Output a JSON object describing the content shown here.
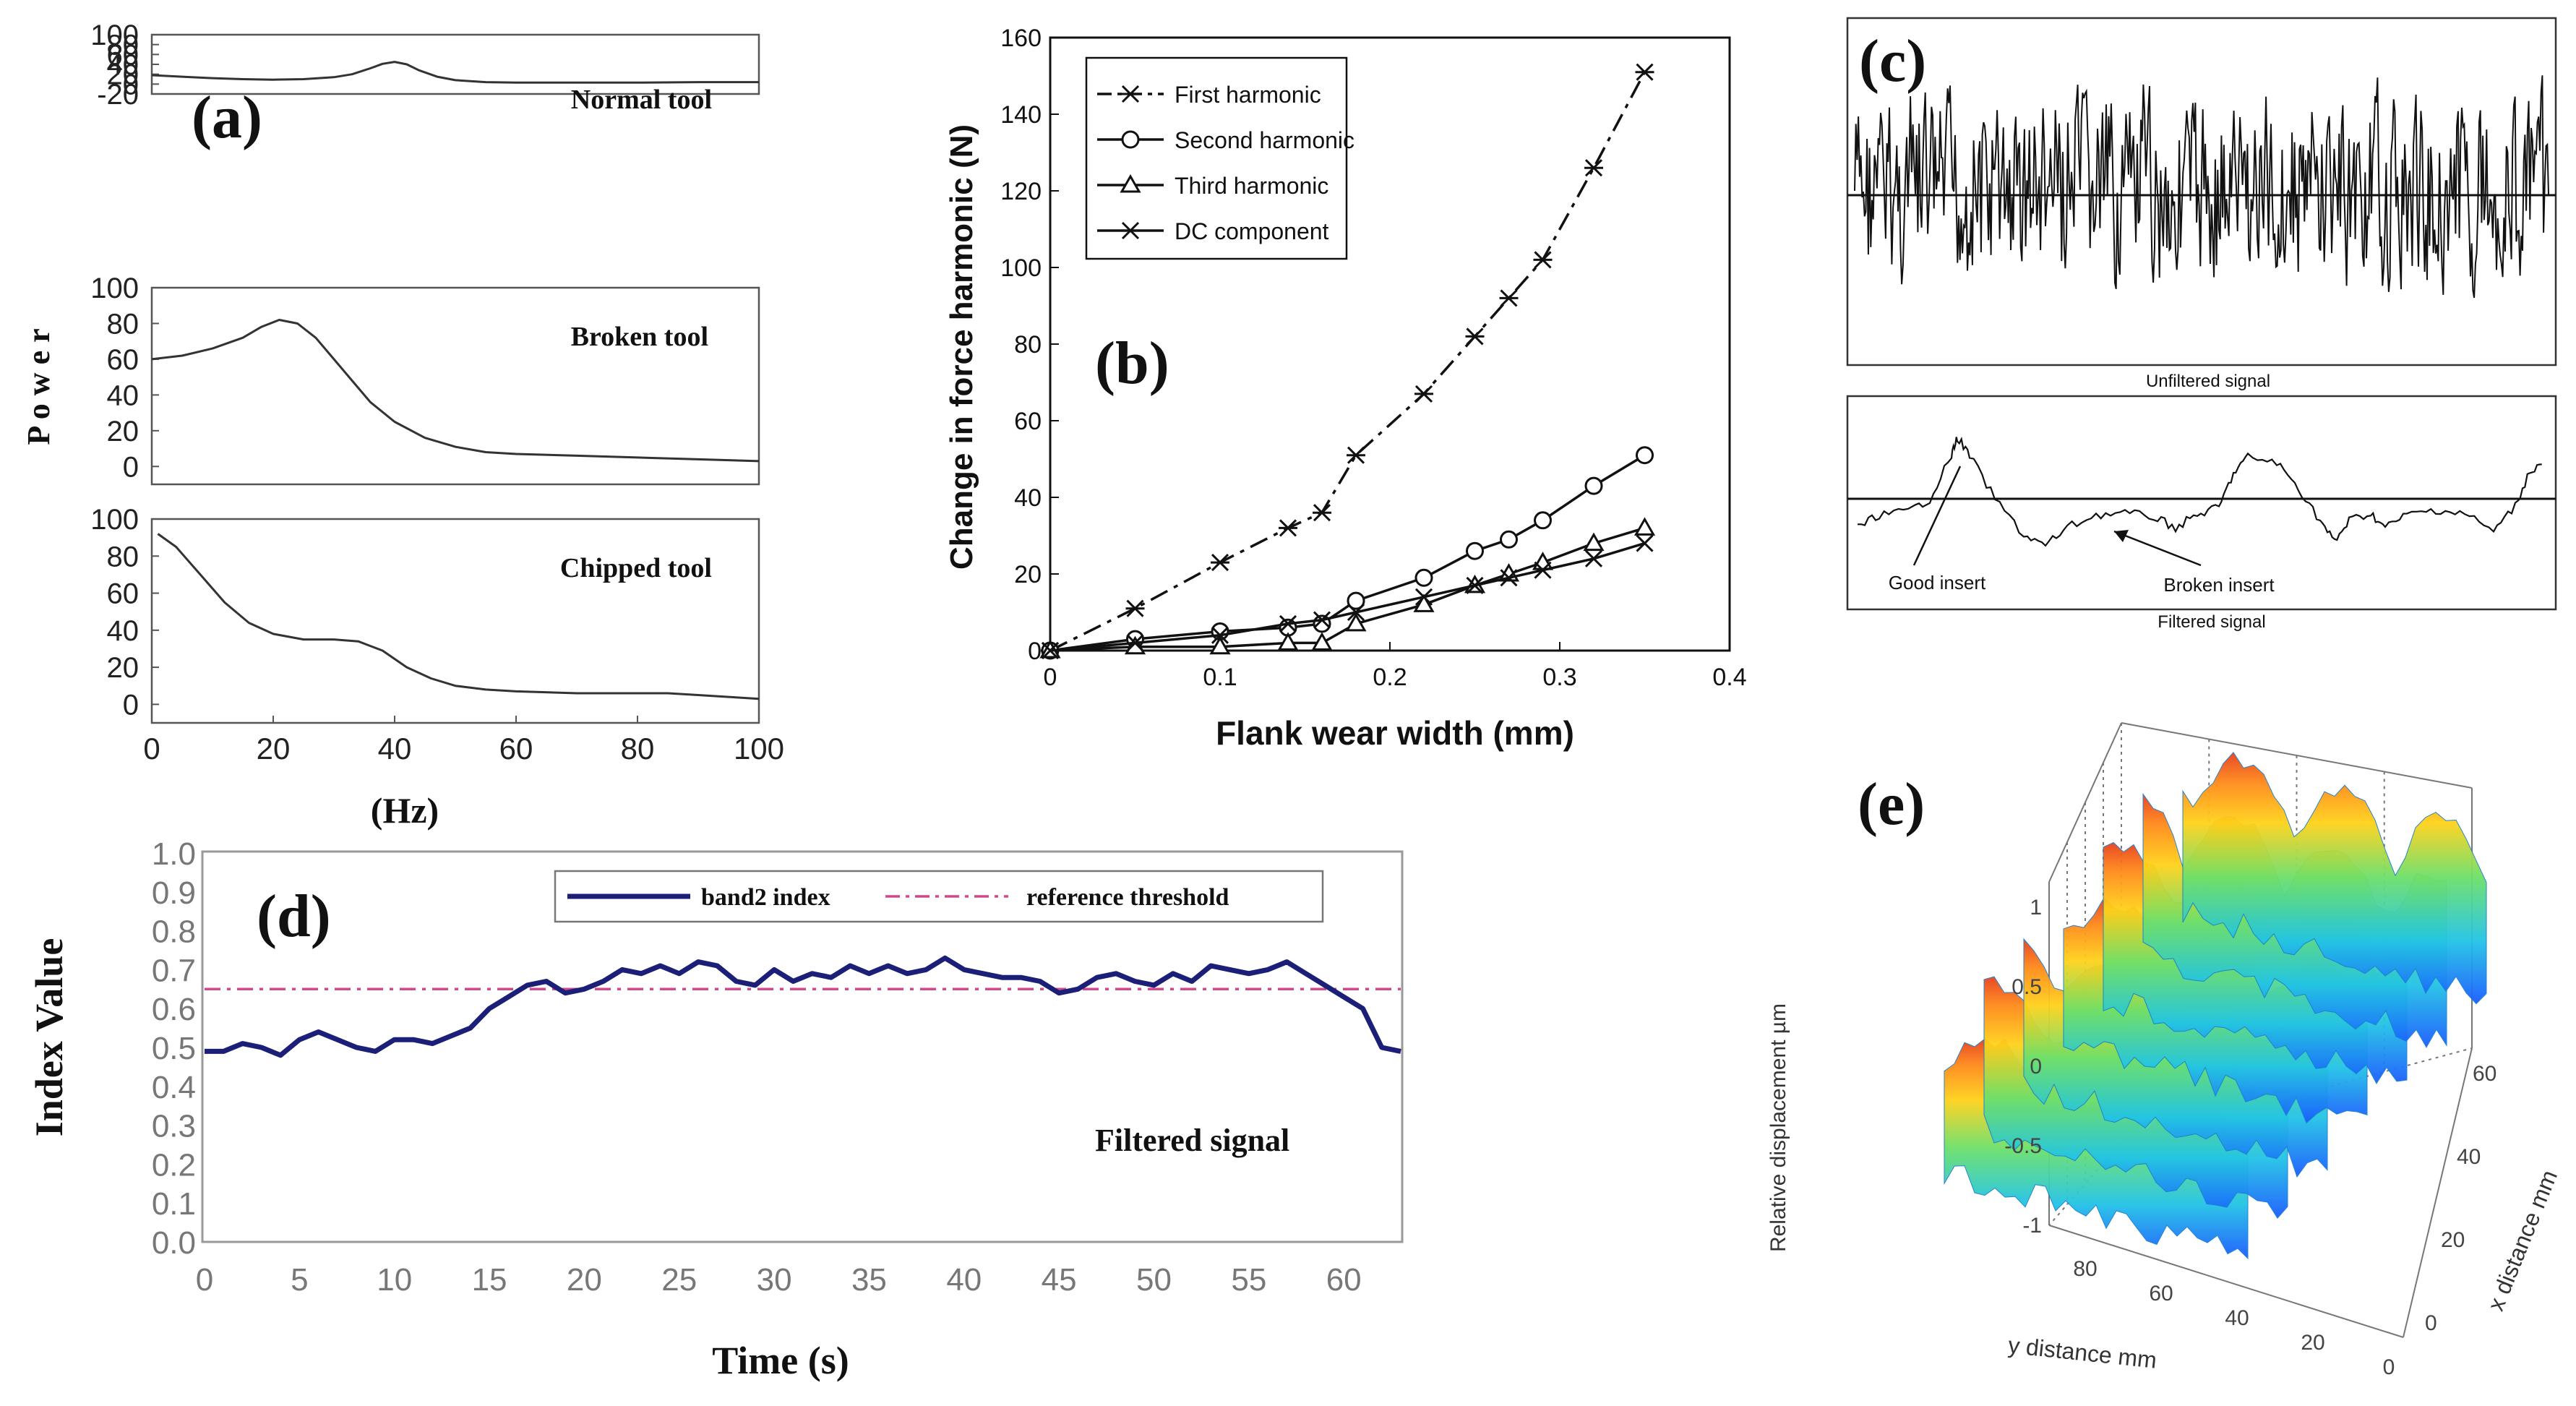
{
  "chart_data": [
    {
      "id": "a",
      "type": "line",
      "panel_label": "(a)",
      "ylabel": "P o w e r",
      "xlabel": "(Hz)",
      "x_ticks": [
        "0",
        "20",
        "40",
        "60",
        "80",
        "100"
      ],
      "xlim": [
        0,
        100
      ],
      "subplots": [
        {
          "name": "Normal tool",
          "ylim": [
            -20,
            100
          ],
          "y_ticks": [
            "100",
            "80",
            "60",
            "40",
            "20",
            "0",
            "-20"
          ],
          "x": [
            0,
            5,
            10,
            15,
            20,
            25,
            30,
            33,
            36,
            38,
            40,
            42,
            44,
            47,
            50,
            55,
            60,
            70,
            80,
            90,
            100
          ],
          "values": [
            18,
            15,
            12,
            10,
            9,
            10,
            14,
            20,
            32,
            41,
            45,
            40,
            28,
            15,
            8,
            4,
            3,
            3,
            3,
            4,
            4
          ]
        },
        {
          "name": "Broken tool",
          "ylim": [
            -10,
            100
          ],
          "y_ticks": [
            "100",
            "80",
            "60",
            "40",
            "20",
            "0"
          ],
          "x": [
            0,
            5,
            10,
            15,
            18,
            21,
            24,
            27,
            30,
            33,
            36,
            40,
            45,
            50,
            55,
            60,
            70,
            80,
            90,
            100
          ],
          "values": [
            60,
            62,
            66,
            72,
            78,
            82,
            80,
            72,
            60,
            48,
            36,
            25,
            16,
            11,
            8,
            7,
            6,
            5,
            4,
            3
          ]
        },
        {
          "name": "Chipped tool",
          "ylim": [
            -10,
            100
          ],
          "y_ticks": [
            "100",
            "80",
            "60",
            "40",
            "20",
            "0"
          ],
          "x": [
            1,
            4,
            8,
            12,
            16,
            20,
            25,
            30,
            34,
            38,
            42,
            46,
            50,
            55,
            60,
            70,
            80,
            85,
            90,
            95,
            100
          ],
          "values": [
            92,
            85,
            70,
            55,
            44,
            38,
            35,
            35,
            34,
            29,
            20,
            14,
            10,
            8,
            7,
            6,
            6,
            6,
            5,
            4,
            3
          ]
        }
      ]
    },
    {
      "id": "b",
      "type": "line",
      "panel_label": "(b)",
      "xlabel": "Flank wear width (mm)",
      "ylabel": "Change in  force harmonic (N)",
      "xlim": [
        0,
        0.4
      ],
      "ylim": [
        0,
        160
      ],
      "x_ticks": [
        "0",
        "0.1",
        "0.2",
        "0.3",
        "0.4"
      ],
      "y_ticks": [
        "0",
        "20",
        "40",
        "60",
        "80",
        "100",
        "120",
        "140",
        "160"
      ],
      "series": [
        {
          "name": "First  harmonic",
          "marker": "star",
          "dash": "dashdot",
          "x": [
            0,
            0.05,
            0.1,
            0.14,
            0.16,
            0.18,
            0.22,
            0.25,
            0.27,
            0.29,
            0.32,
            0.35
          ],
          "values": [
            0,
            11,
            23,
            32,
            36,
            51,
            67,
            82,
            92,
            102,
            126,
            151
          ]
        },
        {
          "name": "Second  harmonic",
          "marker": "circle",
          "dash": "solid",
          "x": [
            0,
            0.05,
            0.1,
            0.14,
            0.16,
            0.18,
            0.22,
            0.25,
            0.27,
            0.29,
            0.32,
            0.35
          ],
          "values": [
            0,
            3,
            5,
            6,
            7,
            13,
            19,
            26,
            29,
            34,
            43,
            51
          ]
        },
        {
          "name": "Third  harmonic",
          "marker": "triangle",
          "dash": "solid",
          "x": [
            0,
            0.05,
            0.1,
            0.14,
            0.16,
            0.18,
            0.22,
            0.25,
            0.27,
            0.29,
            0.32,
            0.35
          ],
          "values": [
            0,
            1,
            1,
            2,
            2,
            7,
            12,
            17,
            20,
            23,
            28,
            32
          ]
        },
        {
          "name": "DC  component",
          "marker": "x",
          "dash": "solid",
          "x": [
            0,
            0.05,
            0.1,
            0.14,
            0.16,
            0.18,
            0.22,
            0.25,
            0.27,
            0.29,
            0.32,
            0.35
          ],
          "values": [
            0,
            2,
            4,
            7,
            8,
            10,
            14,
            17,
            19,
            21,
            24,
            28
          ]
        }
      ]
    },
    {
      "id": "c",
      "type": "line",
      "panel_label": "(c)",
      "subplots": [
        {
          "caption": "Unfiltered signal"
        },
        {
          "caption": "Filtered signal",
          "annotations": [
            "Good insert",
            "Broken insert"
          ]
        }
      ]
    },
    {
      "id": "d",
      "type": "line",
      "panel_label": "(d)",
      "xlabel": "Time (s)",
      "ylabel": "Index Value",
      "annotation": "Filtered signal",
      "xlim": [
        0,
        63
      ],
      "ylim": [
        0,
        1.0
      ],
      "x_ticks": [
        "0",
        "5",
        "10",
        "15",
        "20",
        "25",
        "30",
        "35",
        "40",
        "45",
        "50",
        "55",
        "60"
      ],
      "y_ticks": [
        "0.0",
        "0.1",
        "0.2",
        "0.3",
        "0.4",
        "0.5",
        "0.6",
        "0.7",
        "0.8",
        "0.9",
        "1.0"
      ],
      "series": [
        {
          "name": "band2 index",
          "x": [
            0,
            1,
            2,
            3,
            4,
            5,
            6,
            7,
            8,
            9,
            10,
            11,
            12,
            13,
            14,
            15,
            16,
            17,
            18,
            19,
            20,
            21,
            22,
            23,
            24,
            25,
            26,
            27,
            28,
            29,
            30,
            31,
            32,
            33,
            34,
            35,
            36,
            37,
            38,
            39,
            40,
            41,
            42,
            43,
            44,
            45,
            46,
            47,
            48,
            49,
            50,
            51,
            52,
            53,
            54,
            55,
            56,
            57,
            58,
            59,
            60,
            61,
            62,
            63
          ],
          "values": [
            0.49,
            0.49,
            0.51,
            0.5,
            0.48,
            0.52,
            0.54,
            0.52,
            0.5,
            0.49,
            0.52,
            0.52,
            0.51,
            0.53,
            0.55,
            0.6,
            0.63,
            0.66,
            0.67,
            0.64,
            0.65,
            0.67,
            0.7,
            0.69,
            0.71,
            0.69,
            0.72,
            0.71,
            0.67,
            0.66,
            0.7,
            0.67,
            0.69,
            0.68,
            0.71,
            0.69,
            0.71,
            0.69,
            0.7,
            0.73,
            0.7,
            0.69,
            0.68,
            0.68,
            0.67,
            0.64,
            0.65,
            0.68,
            0.69,
            0.67,
            0.66,
            0.69,
            0.67,
            0.71,
            0.7,
            0.69,
            0.7,
            0.72,
            0.69,
            0.66,
            0.63,
            0.6,
            0.5,
            0.49
          ]
        },
        {
          "name": "reference threshold",
          "x": [
            0,
            63
          ],
          "values": [
            0.65,
            0.65
          ]
        }
      ]
    },
    {
      "id": "e",
      "type": "surface",
      "panel_label": "(e)",
      "zlabel": "Relative displacement µm",
      "ylabel": "y distance mm",
      "xlabel": "x distance mm",
      "z_ticks": [
        "1",
        "0.5",
        "0",
        "-0.5",
        "-1"
      ],
      "y_ticks": [
        "80",
        "60",
        "40",
        "20",
        "0"
      ],
      "x_ticks": [
        "0",
        "20",
        "40",
        "60"
      ],
      "zlim": [
        -1,
        1
      ]
    }
  ]
}
